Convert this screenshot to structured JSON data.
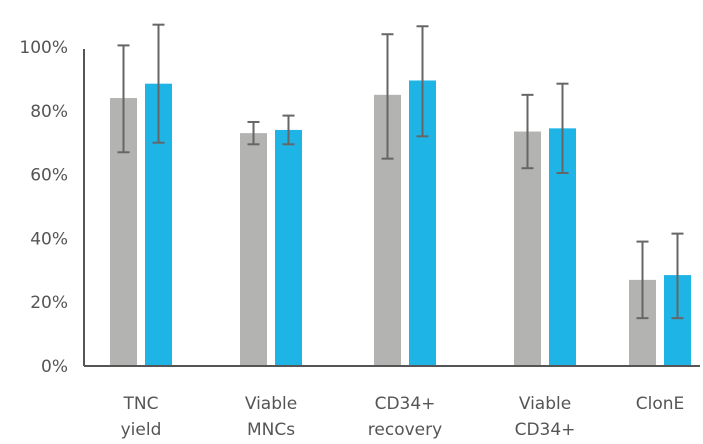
{
  "chart_data": {
    "type": "bar",
    "title": "",
    "xlabel": "",
    "ylabel": "",
    "ylim": [
      0,
      100
    ],
    "y_ticks": [
      "0%",
      "20%",
      "40%",
      "60%",
      "80%",
      "100%"
    ],
    "y_tick_values": [
      0,
      20,
      40,
      60,
      80,
      100
    ],
    "grid": false,
    "legend": "none",
    "categories": [
      [
        "TNC",
        "yield"
      ],
      [
        "Viable",
        "MNCs"
      ],
      [
        "CD34+",
        "recovery"
      ],
      [
        "Viable",
        "CD34+"
      ],
      [
        "ClonE"
      ]
    ],
    "series": [
      {
        "color": "#b3b3b1",
        "values": [
          84,
          73,
          85,
          73.5,
          27
        ],
        "error_low": [
          67,
          69.5,
          65,
          62,
          15
        ],
        "error_high": [
          100.5,
          76.5,
          104,
          85,
          39
        ]
      },
      {
        "color": "#1fb4e6",
        "values": [
          88.5,
          74,
          89.5,
          74.5,
          28.5
        ],
        "error_low": [
          70,
          69.5,
          72,
          60.5,
          15
        ],
        "error_high": [
          107,
          78.5,
          106.5,
          88.5,
          41.5
        ]
      }
    ],
    "error_bar_color": "#666666",
    "axis_color": "#555555"
  }
}
